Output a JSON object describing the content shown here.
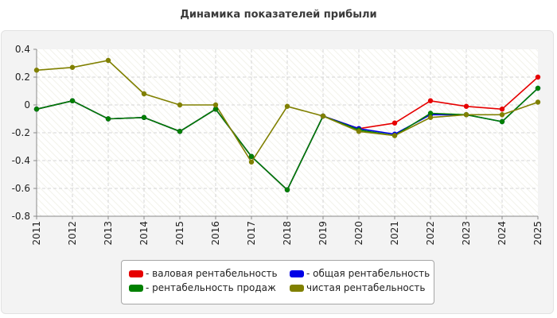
{
  "chart_data": {
    "type": "line",
    "title": "Динамика показателей прибыли",
    "categories": [
      "2011",
      "2012",
      "2013",
      "2014",
      "2015",
      "2016",
      "2017",
      "2018",
      "2019",
      "2020",
      "2021",
      "2022",
      "2023",
      "2024",
      "2025"
    ],
    "ylim": [
      -0.8,
      0.4
    ],
    "yticks": [
      0.4,
      0.2,
      0,
      -0.2,
      -0.4,
      -0.6,
      -0.8
    ],
    "ytick_labels": [
      "0.4",
      "0.2",
      "0",
      "-0.2",
      "-0.4",
      "-0.6",
      "-0.8"
    ],
    "grid": true,
    "legend_position": "bottom-center",
    "series": [
      {
        "name": "- валовая рентабельность",
        "color": "#e60000",
        "values": [
          -0.03,
          0.03,
          -0.1,
          -0.09,
          -0.19,
          -0.03,
          -0.37,
          -0.61,
          -0.08,
          -0.17,
          -0.13,
          0.03,
          -0.01,
          -0.03,
          0.2
        ]
      },
      {
        "name": "- рентабельность продаж",
        "color": "#008000",
        "values": [
          -0.03,
          0.03,
          -0.1,
          -0.09,
          -0.19,
          -0.03,
          -0.37,
          -0.61,
          -0.08,
          -0.18,
          -0.22,
          -0.06,
          -0.07,
          -0.12,
          0.12
        ]
      },
      {
        "name": "- общая рентабельность",
        "color": "#0000e6",
        "values": [
          -0.03,
          0.03,
          -0.1,
          -0.09,
          -0.19,
          -0.03,
          -0.37,
          -0.61,
          -0.08,
          -0.17,
          -0.21,
          -0.07,
          -0.07,
          -0.12,
          0.12
        ]
      },
      {
        "name": "чистая рентабельность",
        "color": "#808000",
        "values": [
          0.25,
          0.27,
          0.32,
          0.08,
          0,
          0,
          -0.41,
          -0.01,
          -0.08,
          -0.19,
          -0.22,
          -0.09,
          -0.07,
          -0.07,
          0.02
        ]
      }
    ]
  }
}
